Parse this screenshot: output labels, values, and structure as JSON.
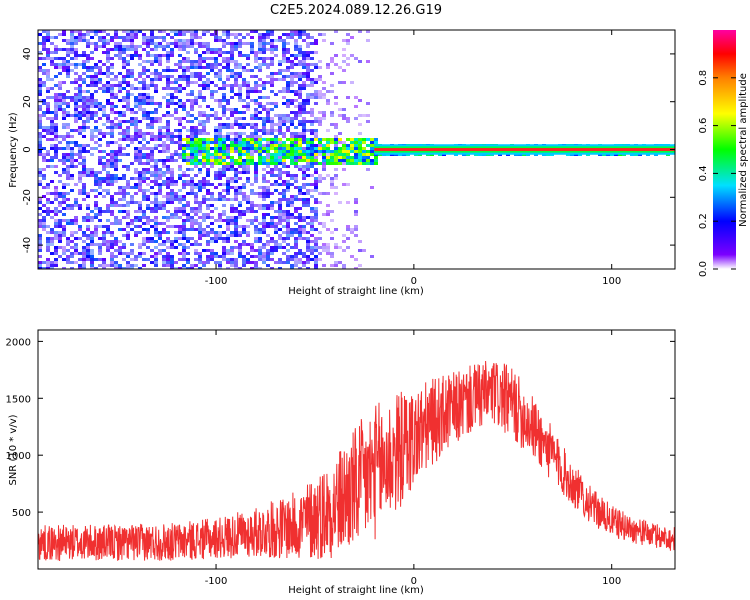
{
  "title": "C2E5.2024.089.12.26.G19",
  "chart_data": [
    {
      "type": "heatmap",
      "xlabel": "Height of straight line (km)",
      "ylabel": "Frequency (Hz)",
      "xlim": [
        -190,
        132
      ],
      "ylim": [
        -50,
        50
      ],
      "xticks": [
        -100,
        0,
        100
      ],
      "yticks": [
        -40,
        -20,
        0,
        20,
        40
      ],
      "colorbar": {
        "label": "Normalized spectral amplitude",
        "range": [
          0,
          1
        ],
        "ticks": [
          0.0,
          0.2,
          0.4,
          0.6,
          0.8
        ],
        "tick_labels": [
          "0.0",
          "0.2",
          "0.4",
          "0.6",
          "0.8"
        ],
        "colormap": [
          "#ffffff",
          "#7b00ff",
          "#0000ff",
          "#00e0ff",
          "#00ff00",
          "#ffff00",
          "#ff8000",
          "#ff0000",
          "#ff00a0"
        ]
      },
      "regions": [
        {
          "description": "broadband noise",
          "x": [
            -190,
            -50
          ],
          "f": [
            -50,
            50
          ],
          "amplitude": 0.2
        },
        {
          "description": "noise fading",
          "x": [
            -50,
            -20
          ],
          "f": [
            -50,
            50
          ],
          "amplitude": 0.05
        },
        {
          "description": "spread signal",
          "x": [
            -118,
            -20
          ],
          "f": [
            -6,
            5
          ],
          "amplitude": 0.45
        },
        {
          "description": "narrow carrier",
          "x": [
            -20,
            132
          ],
          "f": [
            -1,
            1
          ],
          "amplitude": 0.85
        }
      ]
    },
    {
      "type": "line",
      "xlabel": "Height of straight line (km)",
      "ylabel": "SNR (10 * v/v)",
      "xlim": [
        -190,
        132
      ],
      "ylim": [
        0,
        2100
      ],
      "xticks": [
        -100,
        0,
        100
      ],
      "yticks": [
        500,
        1000,
        1500,
        2000
      ],
      "color": "#f03030",
      "envelope": {
        "x": [
          -190,
          -150,
          -120,
          -100,
          -80,
          -60,
          -50,
          -40,
          -30,
          -20,
          -10,
          0,
          10,
          20,
          30,
          40,
          50,
          60,
          70,
          80,
          90,
          100,
          110,
          120,
          132
        ],
        "mean": [
          230,
          230,
          240,
          270,
          320,
          380,
          450,
          550,
          700,
          850,
          1000,
          1150,
          1300,
          1400,
          1500,
          1550,
          1450,
          1250,
          1000,
          750,
          550,
          420,
          350,
          300,
          260
        ],
        "spread": [
          160,
          160,
          170,
          180,
          220,
          300,
          380,
          450,
          550,
          600,
          550,
          450,
          380,
          330,
          300,
          300,
          320,
          280,
          250,
          200,
          160,
          140,
          120,
          110,
          110
        ]
      }
    }
  ]
}
